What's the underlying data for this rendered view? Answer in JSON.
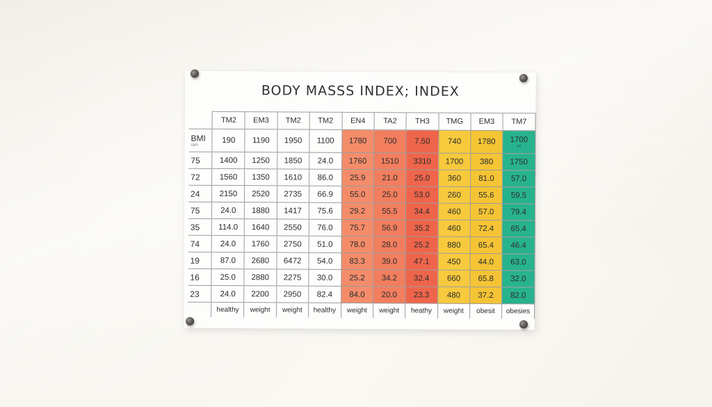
{
  "title": "BODY MASSS INDEX; INDEX",
  "table": {
    "headers": [
      "TM2",
      "EM3",
      "TM2",
      "TM2",
      "EN4",
      "TA2",
      "TH3",
      "TMG",
      "EM3",
      "TM7"
    ],
    "first_row": {
      "label": "BMI",
      "sublabel": "ram",
      "values": [
        "190",
        "1190",
        "1950",
        "1100",
        "1780",
        "700",
        "7.50",
        "740",
        "1780",
        "1700"
      ],
      "last_sub": "as"
    },
    "rows": [
      {
        "label": "75",
        "values": [
          "1400",
          "1250",
          "1850",
          "24.0",
          "1760",
          "1510",
          "3310",
          "1700",
          "380",
          "1750"
        ]
      },
      {
        "label": "72",
        "values": [
          "1560",
          "1350",
          "1610",
          "86.0",
          "25.9",
          "21.0",
          "25.0",
          "360",
          "81.0",
          "57.0"
        ]
      },
      {
        "label": "24",
        "values": [
          "2150",
          "2520",
          "2735",
          "66.9",
          "55.0",
          "25.0",
          "53.0",
          "260",
          "55.6",
          "59.5"
        ]
      },
      {
        "label": "75",
        "values": [
          "24.0",
          "1880",
          "1417",
          "75.6",
          "29.2",
          "55.5",
          "34.4",
          "460",
          "57.0",
          "79.4"
        ]
      },
      {
        "label": "35",
        "values": [
          "114.0",
          "1640",
          "2550",
          "76.0",
          "75.7",
          "56.9",
          "35.2",
          "460",
          "72.4",
          "65.4"
        ]
      },
      {
        "label": "74",
        "values": [
          "24.0",
          "1760",
          "2750",
          "51.0",
          "78.0",
          "28.0",
          "25.2",
          "880",
          "65.4",
          "46.4"
        ]
      },
      {
        "label": "19",
        "values": [
          "87.0",
          "2680",
          "6472",
          "54.0",
          "83.3",
          "39.0",
          "47.1",
          "450",
          "44.0",
          "63.0"
        ]
      },
      {
        "label": "16",
        "values": [
          "25.0",
          "2880",
          "2275",
          "30.0",
          "25.2",
          "34.2",
          "32.4",
          "660",
          "65.8",
          "32.0"
        ]
      },
      {
        "label": "23",
        "values": [
          "24.0",
          "2200",
          "2950",
          "82.4",
          "84.0",
          "20.0",
          "23.3",
          "480",
          "37.2",
          "82.0"
        ]
      }
    ],
    "footer": [
      "healthy",
      "weight",
      "weight",
      "healthy",
      "weight",
      "weight",
      "heathy",
      "weight",
      "obesit",
      "obesies"
    ]
  }
}
